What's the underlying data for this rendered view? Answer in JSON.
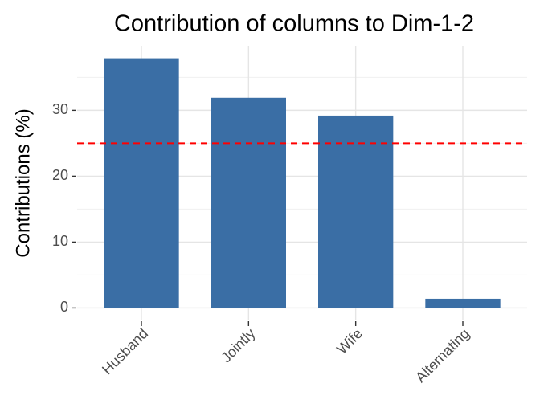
{
  "chart_data": {
    "type": "bar",
    "title": "Contribution of columns to Dim-1-2",
    "y_label": "Contributions (%)",
    "categories": [
      "Husband",
      "Jointly",
      "Wife",
      "Alternating"
    ],
    "values": [
      37.9,
      31.9,
      29.2,
      1.4
    ],
    "color": "#3a6ea5",
    "ylim": [
      -1.9,
      39.8
    ],
    "yticks": [
      0,
      10,
      20,
      30
    ],
    "y_minor_ticks": [
      5,
      15,
      25,
      35
    ],
    "grid": true,
    "hline": {
      "value": 25,
      "color": "#ff0000",
      "linestyle": "dashed"
    }
  }
}
